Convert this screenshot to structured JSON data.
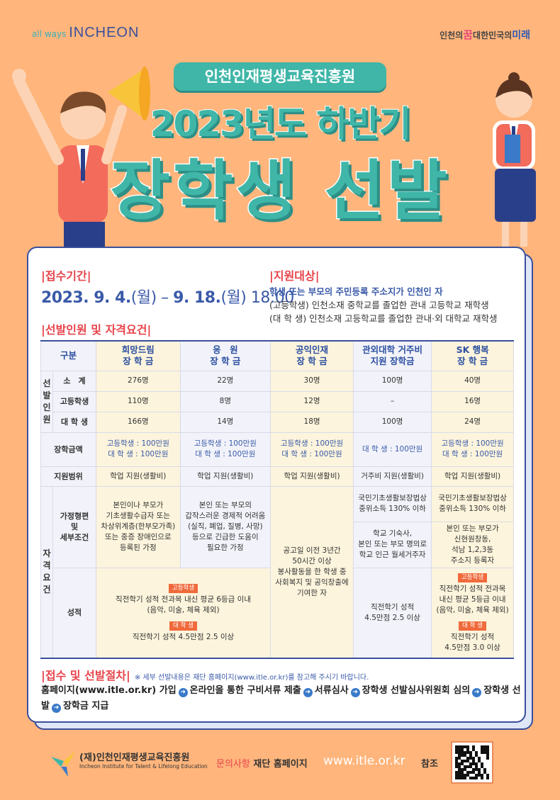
{
  "header": {
    "left_logo_small": "all ways",
    "left_logo_big": "INCHEON",
    "right_logo": {
      "a": "인천의",
      "b": "꿈",
      "c": "대한민국의",
      "d": "미래"
    }
  },
  "org_pill": "인천인재평생교육진흥원",
  "title_line1": "2023년도 하반기",
  "title_line2": "장학생 선발",
  "period": {
    "heading": "|접수기간|",
    "date_a": "2023. 9. 4.",
    "day_a": "(월)",
    "sep": " – ",
    "date_b": "9. 18.",
    "day_b": "(월)",
    "time": " 18:00"
  },
  "target": {
    "heading": "|지원대상|",
    "lines": [
      "학생 또는 부모의 주민등록 주소지가 인천인 자",
      "(고등학생) 인천소재 중학교를 졸업한 관내 고등학교 재학생",
      "(대 학 생) 인천소재 고등학교를 졸업한 관내·외 대학교 재학생"
    ]
  },
  "selection_heading": "|선발인원 및 자격요건|",
  "table": {
    "corner": "구분",
    "columns": [
      [
        "희망드림",
        "장 학 금"
      ],
      [
        "응　원",
        "장 학 금"
      ],
      [
        "공익인재",
        "장 학 금"
      ],
      [
        "관외대학 거주비",
        "지원 장학금"
      ],
      [
        "SK 행복",
        "장 학 금"
      ]
    ],
    "group_count": "선발인원",
    "group_qual": "자격요건",
    "rows_count": [
      {
        "label": "소　계",
        "values": [
          "276명",
          "22명",
          "30명",
          "100명",
          "40명"
        ]
      },
      {
        "label": "고등학생",
        "values": [
          "110명",
          "8명",
          "12명",
          "–",
          "16명"
        ]
      },
      {
        "label": "대 학 생",
        "values": [
          "166명",
          "14명",
          "18명",
          "100명",
          "24명"
        ]
      }
    ],
    "amount": {
      "label": "장학금액",
      "values": [
        [
          "고등학생 : 100만원",
          "대 학 생 : 100만원"
        ],
        [
          "고등학생 : 100만원",
          "대 학 생 : 100만원"
        ],
        [
          "고등학생 : 100만원",
          "대 학 생 : 100만원"
        ],
        [
          "대 학 생 : 100만원"
        ],
        [
          "고등학생 : 100만원",
          "대 학 생 : 100만원"
        ]
      ]
    },
    "scope": {
      "label": "지원범위",
      "values": [
        "학업 지원(생활비)",
        "학업 지원(생활비)",
        "학업 지원(생활비)",
        "거주비 지원(생활비)",
        "학업 지원(생활비)"
      ]
    },
    "family": {
      "label": [
        "가정형편",
        "및",
        "세부조건"
      ],
      "c1": [
        "본인이나 부모가",
        "기초생활수급자 또는",
        "차상위계층(한부모가족)",
        "또는 중증 장애인으로",
        "등록된 가정"
      ],
      "c2": [
        "본인 또는 부모의",
        "갑작스러운 경제적 어려움",
        "(실직, 폐업, 질병, 사망)",
        "등으로 긴급한 도움이",
        "필요한 가정"
      ],
      "c3": [
        "공고일 이전 3년간",
        "50시간 이상",
        "봉사활동을 한 학생 중",
        "사회복지 및 공익창출에",
        "기여한 자"
      ],
      "c4a": [
        "국민기초생활보장법상",
        "중위소득 130% 이하"
      ],
      "c4b": [
        "학교 기숙사,",
        "본인 또는 부모 명의로",
        "학교 인근 월세거주자"
      ],
      "c5a": [
        "국민기초생활보장법상",
        "중위소득 130% 이하"
      ],
      "c5b": [
        "본인 또는 부모가",
        "신현원창동,",
        "석남 1,2,3동",
        "주소지 등록자"
      ]
    },
    "grades": {
      "label": "성적",
      "tag_high": "고등학생",
      "tag_univ": "대 학 생",
      "c12_high": [
        "직전학기 성적 전과목 내신 평균 6등급 이내",
        "(음악, 미술, 체육 제외)"
      ],
      "c12_univ": "직전학기 성적 4.5만점 2.5 이상",
      "c4": [
        "직전학기 성적",
        "4.5만점 2.5 이상"
      ],
      "c5_high": [
        "직전학기 성적 전과목",
        "내신 평균 5등급 이내",
        "(음악, 미술, 체육 제외)"
      ],
      "c5_univ": [
        "직전학기 성적",
        "4.5만점 3.0 이상"
      ]
    }
  },
  "procedure": {
    "heading": "|접수 및 선발절차|",
    "note": "※ 세부 선발내용은 재단 홈페이지(www.itle.or.kr)를 참고해 주시기 바랍니다.",
    "steps": [
      "홈페이지(www.itle.or.kr) 가입",
      "온라인을 통한 구비서류 제출",
      "서류심사",
      "장학생 선발심사위원회 심의",
      "장학생 선발",
      "장학금 지급"
    ]
  },
  "footer": {
    "org_ko": "(재)인천인재평생교육진흥원",
    "org_en": "Incheon Institute for Talent & Lifelong Education",
    "inquiry": "문의사항",
    "inquiry_text": "재단 홈페이지",
    "url": "www.itle.or.kr",
    "ref": "참조"
  },
  "colors": {
    "background": "#FFB57C",
    "teal": "#3fb6a8",
    "navy": "#3a4f9c",
    "red": "#e8444b"
  }
}
